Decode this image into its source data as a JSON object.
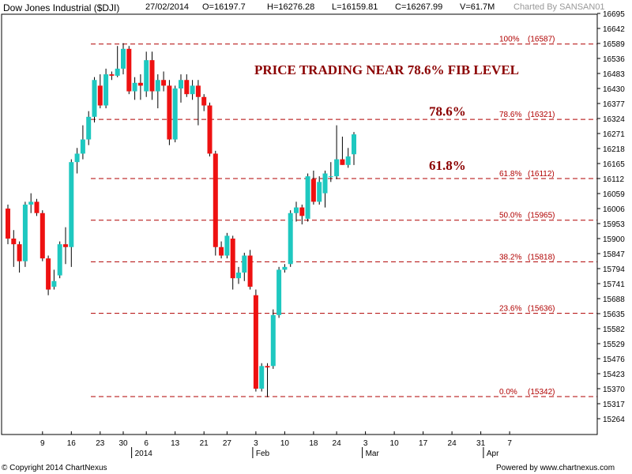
{
  "header": {
    "symbol": "Dow Jones Industrial ($DJI)",
    "date": "27/02/2014",
    "open": "O=16197.7",
    "high": "H=16276.28",
    "low": "L=16159.81",
    "close": "C=16267.99",
    "volume": "V=61.7M",
    "charted_by": "Charted By SANSAN01"
  },
  "footer": {
    "copyright": "© Copyright 2014 ChartNexus",
    "powered": "Powered by www.chartnexus.com"
  },
  "colors": {
    "up": "#1ec8c0",
    "down": "#ee1111",
    "fib_line": "#b00000",
    "annotation": "#8b0000",
    "axis": "#000000"
  },
  "chart_data": {
    "type": "candlestick",
    "title": "PRICE TRADING NEAR 78.6% FIB LEVEL",
    "ylim": [
      15211,
      16695
    ],
    "y_ticks": [
      16695,
      16642,
      16589,
      16536,
      16483,
      16430,
      16377,
      16324,
      16271,
      16218,
      16165,
      16112,
      16059,
      16006,
      15953,
      15900,
      15847,
      15794,
      15741,
      15688,
      15635,
      15582,
      15529,
      15476,
      15423,
      15370,
      15317,
      15264
    ],
    "x_labels": [
      {
        "label": "9",
        "index": 6
      },
      {
        "label": "16",
        "index": 11
      },
      {
        "label": "23",
        "index": 16
      },
      {
        "label": "30",
        "index": 20
      },
      {
        "label": "6",
        "index": 24
      },
      {
        "label": "13",
        "index": 29
      },
      {
        "label": "21",
        "index": 34
      },
      {
        "label": "27",
        "index": 38
      },
      {
        "label": "3",
        "index": 43
      },
      {
        "label": "10",
        "index": 48
      },
      {
        "label": "18",
        "index": 53
      },
      {
        "label": "24",
        "index": 57
      },
      {
        "label": "3",
        "index": 62
      },
      {
        "label": "10",
        "index": 67
      },
      {
        "label": "17",
        "index": 72
      },
      {
        "label": "24",
        "index": 77
      },
      {
        "label": "31",
        "index": 82
      },
      {
        "label": "7",
        "index": 87
      }
    ],
    "x_sublabels": [
      {
        "label": "2014",
        "index": 22
      },
      {
        "label": "Feb",
        "index": 43
      },
      {
        "label": "Mar",
        "index": 62
      },
      {
        "label": "Apr",
        "index": 83
      }
    ],
    "fib_levels": [
      {
        "label": "100%",
        "value": "(16587)",
        "price": 16587
      },
      {
        "label": "78.6%",
        "value": "(16321)",
        "price": 16321
      },
      {
        "label": "61.8%",
        "value": "(16112)",
        "price": 16112
      },
      {
        "label": "50.0%",
        "value": "(15965)",
        "price": 15965
      },
      {
        "label": "38.2%",
        "value": "(15818)",
        "price": 15818
      },
      {
        "label": "23.6%",
        "value": "(15636)",
        "price": 15636
      },
      {
        "label": "0.0%",
        "value": "(15342)",
        "price": 15342
      }
    ],
    "annotations": [
      {
        "text": "78.6%",
        "price": 16350
      },
      {
        "text": "61.8%",
        "price": 16160
      }
    ],
    "candles": [
      {
        "o": 16006,
        "h": 16020,
        "l": 15880,
        "c": 15900
      },
      {
        "o": 15900,
        "h": 15930,
        "l": 15800,
        "c": 15880
      },
      {
        "o": 15880,
        "h": 15890,
        "l": 15780,
        "c": 15820
      },
      {
        "o": 15820,
        "h": 16030,
        "l": 15800,
        "c": 16020
      },
      {
        "o": 16020,
        "h": 16060,
        "l": 15990,
        "c": 16030
      },
      {
        "o": 16030,
        "h": 16040,
        "l": 15980,
        "c": 15990
      },
      {
        "o": 15990,
        "h": 16000,
        "l": 15820,
        "c": 15830
      },
      {
        "o": 15830,
        "h": 15840,
        "l": 15700,
        "c": 15720
      },
      {
        "o": 15730,
        "h": 15790,
        "l": 15720,
        "c": 15750
      },
      {
        "o": 15770,
        "h": 15890,
        "l": 15760,
        "c": 15880
      },
      {
        "o": 15880,
        "h": 15940,
        "l": 15810,
        "c": 15870
      },
      {
        "o": 15870,
        "h": 16180,
        "l": 15800,
        "c": 16170
      },
      {
        "o": 16170,
        "h": 16220,
        "l": 16130,
        "c": 16200
      },
      {
        "o": 16200,
        "h": 16300,
        "l": 16180,
        "c": 16250
      },
      {
        "o": 16250,
        "h": 16350,
        "l": 16230,
        "c": 16330
      },
      {
        "o": 16330,
        "h": 16470,
        "l": 16310,
        "c": 16460
      },
      {
        "o": 16440,
        "h": 16480,
        "l": 16360,
        "c": 16370
      },
      {
        "o": 16370,
        "h": 16500,
        "l": 16360,
        "c": 16480
      },
      {
        "o": 16480,
        "h": 16490,
        "l": 16460,
        "c": 16475
      },
      {
        "o": 16475,
        "h": 16580,
        "l": 16470,
        "c": 16500
      },
      {
        "o": 16500,
        "h": 16590,
        "l": 16480,
        "c": 16570
      },
      {
        "o": 16570,
        "h": 16580,
        "l": 16410,
        "c": 16420
      },
      {
        "o": 16420,
        "h": 16470,
        "l": 16390,
        "c": 16450
      },
      {
        "o": 16450,
        "h": 16480,
        "l": 16390,
        "c": 16440
      },
      {
        "o": 16420,
        "h": 16560,
        "l": 16400,
        "c": 16530
      },
      {
        "o": 16530,
        "h": 16560,
        "l": 16390,
        "c": 16420
      },
      {
        "o": 16420,
        "h": 16480,
        "l": 16360,
        "c": 16460
      },
      {
        "o": 16460,
        "h": 16490,
        "l": 16420,
        "c": 16440
      },
      {
        "o": 16440,
        "h": 16460,
        "l": 16230,
        "c": 16250
      },
      {
        "o": 16250,
        "h": 16440,
        "l": 16240,
        "c": 16430
      },
      {
        "o": 16430,
        "h": 16480,
        "l": 16380,
        "c": 16460
      },
      {
        "o": 16460,
        "h": 16480,
        "l": 16400,
        "c": 16410
      },
      {
        "o": 16410,
        "h": 16460,
        "l": 16390,
        "c": 16440
      },
      {
        "o": 16440,
        "h": 16460,
        "l": 16300,
        "c": 16400
      },
      {
        "o": 16400,
        "h": 16410,
        "l": 16350,
        "c": 16370
      },
      {
        "o": 16370,
        "h": 16380,
        "l": 16190,
        "c": 16200
      },
      {
        "o": 16200,
        "h": 16210,
        "l": 15840,
        "c": 15870
      },
      {
        "o": 15870,
        "h": 15890,
        "l": 15830,
        "c": 15840
      },
      {
        "o": 15840,
        "h": 15920,
        "l": 15830,
        "c": 15910
      },
      {
        "o": 15900,
        "h": 15910,
        "l": 15720,
        "c": 15760
      },
      {
        "o": 15760,
        "h": 15800,
        "l": 15740,
        "c": 15780
      },
      {
        "o": 15780,
        "h": 15850,
        "l": 15750,
        "c": 15840
      },
      {
        "o": 15840,
        "h": 15860,
        "l": 15720,
        "c": 15730
      },
      {
        "o": 15700,
        "h": 15720,
        "l": 15360,
        "c": 15370
      },
      {
        "o": 15370,
        "h": 15460,
        "l": 15360,
        "c": 15450
      },
      {
        "o": 15450,
        "h": 15460,
        "l": 15340,
        "c": 15445
      },
      {
        "o": 15450,
        "h": 15650,
        "l": 15440,
        "c": 15630
      },
      {
        "o": 15630,
        "h": 15800,
        "l": 15620,
        "c": 15790
      },
      {
        "o": 15790,
        "h": 15810,
        "l": 15780,
        "c": 15800
      },
      {
        "o": 15810,
        "h": 16000,
        "l": 15800,
        "c": 15990
      },
      {
        "o": 15990,
        "h": 16030,
        "l": 15960,
        "c": 16010
      },
      {
        "o": 16010,
        "h": 16020,
        "l": 15950,
        "c": 15980
      },
      {
        "o": 15970,
        "h": 16130,
        "l": 15960,
        "c": 16120
      },
      {
        "o": 16110,
        "h": 16140,
        "l": 16020,
        "c": 16030
      },
      {
        "o": 16030,
        "h": 16120,
        "l": 16020,
        "c": 16100
      },
      {
        "o": 16060,
        "h": 16140,
        "l": 16010,
        "c": 16130
      },
      {
        "o": 16120,
        "h": 16170,
        "l": 16100,
        "c": 16120
      },
      {
        "o": 16120,
        "h": 16300,
        "l": 16110,
        "c": 16180
      },
      {
        "o": 16180,
        "h": 16260,
        "l": 16160,
        "c": 16160
      },
      {
        "o": 16160,
        "h": 16220,
        "l": 16150,
        "c": 16190
      },
      {
        "o": 16197.7,
        "h": 16276.28,
        "l": 16159.81,
        "c": 16267.99
      }
    ]
  }
}
